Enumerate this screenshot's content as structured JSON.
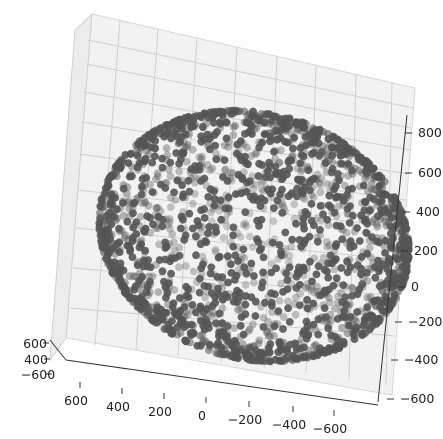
{
  "chart_data": {
    "type": "scatter",
    "projection": "3d",
    "shape": "sphere",
    "radius_approx": 600,
    "center": [
      0,
      0,
      0
    ],
    "point_count_approx": 2000,
    "grid": true,
    "marker_color": "#555555",
    "background_color": "#ffffff",
    "pane_color": "#f2f2f2",
    "grid_color": "#cfcfcf",
    "axes": {
      "right": {
        "ticks": [
          "800",
          "600",
          "400",
          "200",
          "0",
          "−200",
          "−400",
          "−600"
        ]
      },
      "bottom": {
        "ticks": [
          "600",
          "400",
          "200",
          "0",
          "−200",
          "−400",
          "−600"
        ]
      },
      "left": {
        "ticks": [
          "600",
          "400",
          "−600"
        ]
      }
    }
  }
}
